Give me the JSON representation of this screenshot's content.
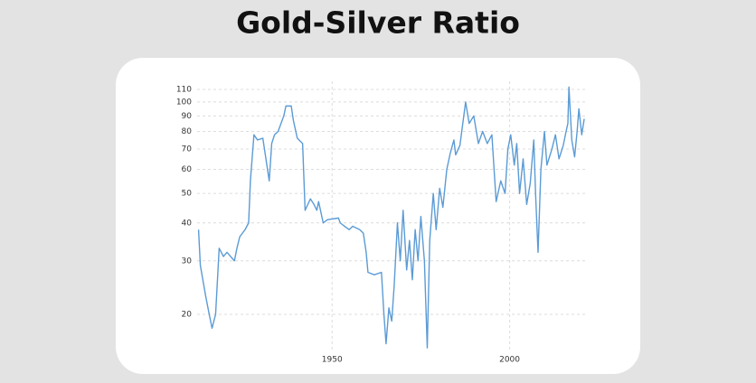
{
  "chart_data": {
    "type": "line",
    "title": "Gold-Silver Ratio",
    "log_y": true,
    "grid": true,
    "color": "#5b9bd5",
    "xlim": [
      1912,
      2021.5
    ],
    "xticks": [
      1950,
      2000
    ],
    "ylim": [
      15,
      117
    ],
    "yticks": [
      20,
      30,
      40,
      50,
      60,
      70,
      80,
      90,
      100,
      110
    ],
    "x": [
      1912.4,
      1912.9,
      1914.4,
      1915.4,
      1916.2,
      1917.2,
      1918.2,
      1919.4,
      1920.4,
      1922.5,
      1923.2,
      1924.0,
      1925.5,
      1926.5,
      1927.0,
      1928.0,
      1929.0,
      1930.5,
      1932.3,
      1933.0,
      1933.8,
      1934.8,
      1936.4,
      1937.0,
      1938.5,
      1939.1,
      1940.2,
      1941.7,
      1942.4,
      1943.9,
      1944.9,
      1945.7,
      1946.2,
      1947.5,
      1948.7,
      1951.8,
      1952.3,
      1953.5,
      1954.8,
      1955.8,
      1957.8,
      1958.8,
      1959.6,
      1960.1,
      1961.9,
      1963.9,
      1964.6,
      1965.2,
      1966.0,
      1966.8,
      1967.5,
      1968.4,
      1969.2,
      1970.0,
      1971.0,
      1971.8,
      1972.6,
      1973.4,
      1974.2,
      1975.0,
      1976.0,
      1976.8,
      1977.5,
      1978.5,
      1979.3,
      1980.3,
      1981.2,
      1982.3,
      1983.3,
      1984.3,
      1984.8,
      1986.0,
      1987.6,
      1988.6,
      1989.9,
      1991.2,
      1992.4,
      1993.7,
      1995.0,
      1995.7,
      1996.2,
      1997.5,
      1998.7,
      1999.5,
      2000.3,
      2001.3,
      2002.0,
      2002.8,
      2003.8,
      2004.8,
      2005.8,
      2006.8,
      2007.3,
      2008.0,
      2008.8,
      2009.8,
      2010.5,
      2011.9,
      2012.9,
      2013.9,
      2015.1,
      2015.9,
      2016.4,
      2016.7,
      2017.5,
      2018.3,
      2019.0,
      2019.5,
      2020.3,
      2021.0
    ],
    "values": [
      38,
      29,
      23,
      20,
      18,
      20,
      33,
      31,
      32,
      30,
      33,
      36,
      38,
      40,
      55,
      78,
      75,
      76,
      55,
      73,
      78,
      80,
      90,
      97,
      97,
      87,
      76,
      73,
      44,
      48,
      46,
      44,
      47,
      40,
      41,
      41.5,
      40,
      39,
      38,
      39,
      38,
      37,
      32,
      27.5,
      27,
      27.5,
      20,
      16,
      21,
      19,
      25,
      40,
      30,
      44,
      28,
      35,
      26,
      38,
      30,
      42,
      30,
      15.5,
      35,
      50,
      38,
      52,
      45,
      60,
      68,
      75,
      67,
      72,
      100,
      85,
      90,
      73,
      80,
      73,
      78,
      58,
      47,
      55,
      50,
      70,
      78,
      62,
      73,
      50,
      65,
      46,
      54,
      75,
      50,
      32,
      60,
      80,
      62,
      70,
      78,
      65,
      72,
      80,
      85,
      112,
      75,
      66,
      80,
      95,
      78,
      88
    ]
  }
}
